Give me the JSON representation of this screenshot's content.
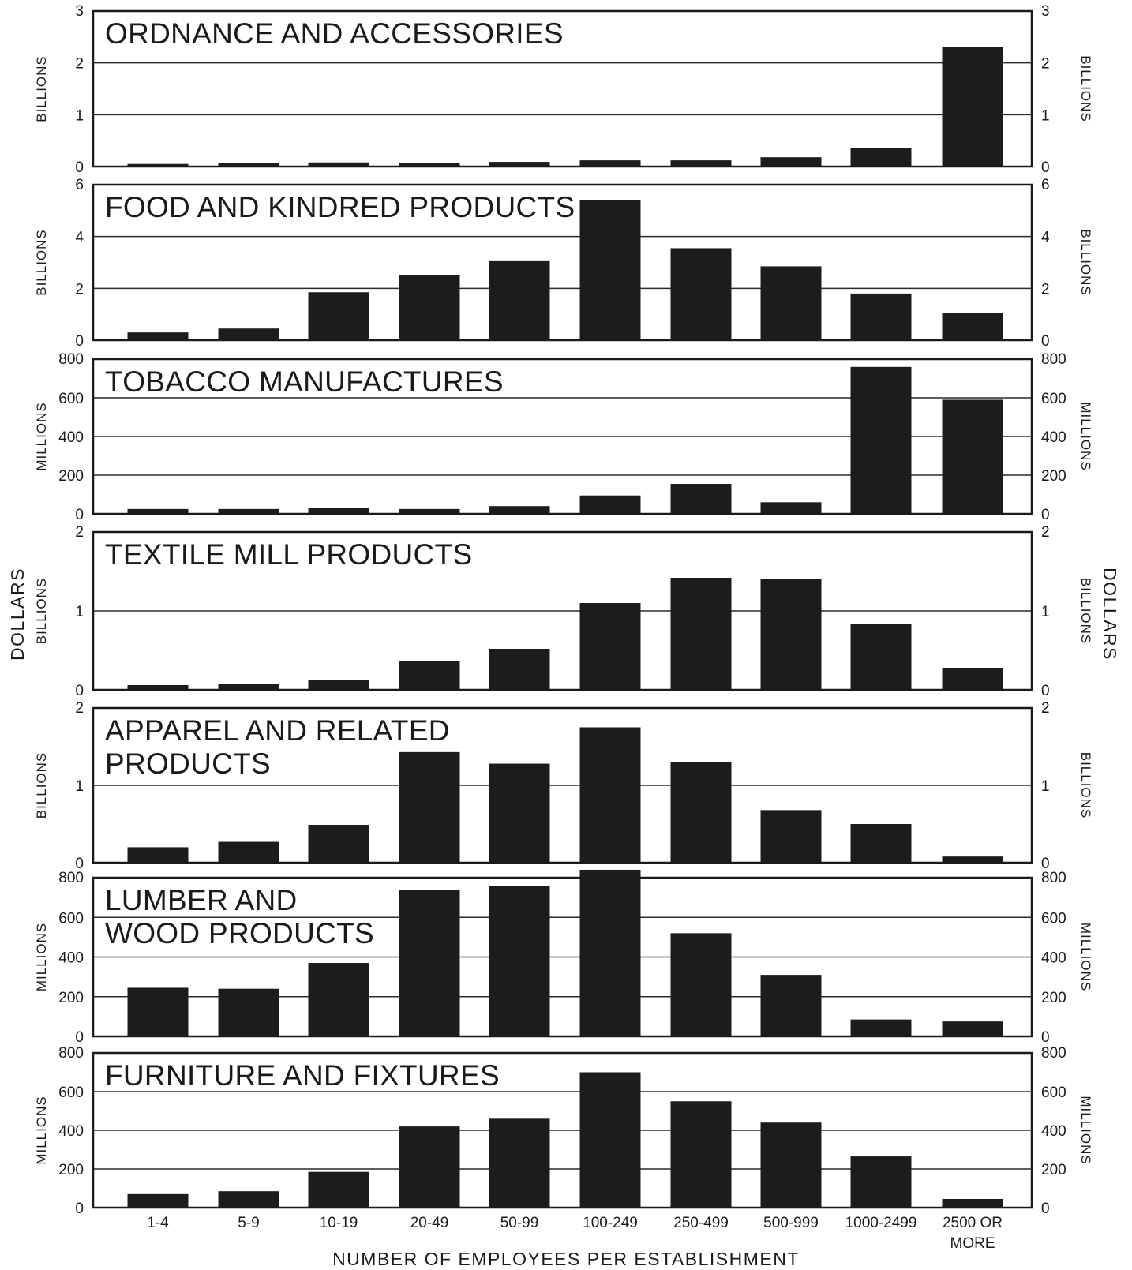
{
  "figure": {
    "xlabel": "NUMBER OF EMPLOYEES PER ESTABLISHMENT",
    "left_label": "DOLLARS",
    "right_label": "DOLLARS"
  },
  "chart_data": [
    {
      "type": "bar",
      "title": "ORDNANCE AND ACCESSORIES",
      "ylabel": "BILLIONS",
      "ylim": [
        0,
        3
      ],
      "yticks": [
        "0",
        "1",
        "2",
        "3"
      ],
      "categories": [
        "1-4",
        "5-9",
        "10-19",
        "20-49",
        "50-99",
        "100-249",
        "250-499",
        "500-999",
        "1000-2499",
        "2500 OR MORE"
      ],
      "values": [
        0.05,
        0.07,
        0.08,
        0.07,
        0.09,
        0.12,
        0.12,
        0.18,
        0.36,
        2.3
      ]
    },
    {
      "type": "bar",
      "title": "FOOD AND KINDRED PRODUCTS",
      "ylabel": "BILLIONS",
      "ylim": [
        0,
        6
      ],
      "yticks": [
        "0",
        "2",
        "4",
        "6"
      ],
      "categories": [
        "1-4",
        "5-9",
        "10-19",
        "20-49",
        "50-99",
        "100-249",
        "250-499",
        "500-999",
        "1000-2499",
        "2500 OR MORE"
      ],
      "values": [
        0.3,
        0.45,
        1.85,
        2.5,
        3.05,
        5.4,
        3.55,
        2.85,
        1.8,
        1.05
      ]
    },
    {
      "type": "bar",
      "title": "TOBACCO MANUFACTURES",
      "ylabel": "MILLIONS",
      "ylim": [
        0,
        800
      ],
      "yticks": [
        "0",
        "200",
        "400",
        "600",
        "800"
      ],
      "categories": [
        "1-4",
        "5-9",
        "10-19",
        "20-49",
        "50-99",
        "100-249",
        "250-499",
        "500-999",
        "1000-2499",
        "2500 OR MORE"
      ],
      "values": [
        25,
        25,
        30,
        25,
        40,
        95,
        155,
        60,
        760,
        590
      ]
    },
    {
      "type": "bar",
      "title": "TEXTILE MILL PRODUCTS",
      "ylabel": "BILLIONS",
      "ylim": [
        0,
        2
      ],
      "yticks": [
        "0",
        "1",
        "2"
      ],
      "categories": [
        "1-4",
        "5-9",
        "10-19",
        "20-49",
        "50-99",
        "100-249",
        "250-499",
        "500-999",
        "1000-2499",
        "2500 OR MORE"
      ],
      "values": [
        0.06,
        0.08,
        0.13,
        0.36,
        0.52,
        1.1,
        1.42,
        1.4,
        0.83,
        0.28
      ]
    },
    {
      "type": "bar",
      "title": "APPAREL AND RELATED PRODUCTS",
      "ylabel": "BILLIONS",
      "ylim": [
        0,
        2
      ],
      "yticks": [
        "0",
        "1",
        "2"
      ],
      "categories": [
        "1-4",
        "5-9",
        "10-19",
        "20-49",
        "50-99",
        "100-249",
        "250-499",
        "500-999",
        "1000-2499",
        "2500 OR MORE"
      ],
      "values": [
        0.2,
        0.27,
        0.49,
        1.43,
        1.28,
        1.75,
        1.3,
        0.68,
        0.5,
        0.08
      ]
    },
    {
      "type": "bar",
      "title": "LUMBER AND WOOD PRODUCTS",
      "ylabel": "MILLIONS",
      "ylim": [
        0,
        800
      ],
      "yticks": [
        "0",
        "200",
        "400",
        "600",
        "800"
      ],
      "categories": [
        "1-4",
        "5-9",
        "10-19",
        "20-49",
        "50-99",
        "100-249",
        "250-499",
        "500-999",
        "1000-2499",
        "2500 OR MORE"
      ],
      "values": [
        245,
        240,
        370,
        740,
        760,
        840,
        520,
        310,
        85,
        75
      ]
    },
    {
      "type": "bar",
      "title": "FURNITURE AND FIXTURES",
      "ylabel": "MILLIONS",
      "ylim": [
        0,
        800
      ],
      "yticks": [
        "0",
        "200",
        "400",
        "600",
        "800"
      ],
      "categories": [
        "1-4",
        "5-9",
        "10-19",
        "20-49",
        "50-99",
        "100-249",
        "250-499",
        "500-999",
        "1000-2499",
        "2500 OR MORE"
      ],
      "values": [
        70,
        85,
        185,
        420,
        460,
        700,
        550,
        440,
        265,
        45
      ]
    }
  ]
}
